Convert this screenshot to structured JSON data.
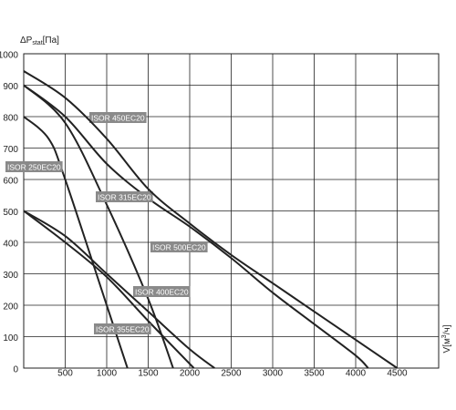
{
  "chart_data": {
    "type": "line",
    "y_label_main": "ΔP",
    "y_label_sub": "stat",
    "y_label_unit": "[Па]",
    "x_label_main": "V[м",
    "x_label_sup": "3",
    "x_label_unit": "/ч]",
    "xlim": [
      0,
      5000
    ],
    "ylim": [
      0,
      1000
    ],
    "xticks": [
      500,
      1000,
      1500,
      2000,
      2500,
      3000,
      3500,
      4000,
      4500
    ],
    "yticks": [
      0,
      100,
      200,
      300,
      400,
      500,
      600,
      700,
      800,
      900,
      1000
    ],
    "grid": true,
    "series": [
      {
        "name": "ISOR 450EC20",
        "color": "#222222",
        "x": [
          0,
          500,
          1000,
          1500,
          2000,
          2500,
          3000,
          3500,
          4000,
          4150
        ],
        "values": [
          900,
          800,
          650,
          540,
          450,
          350,
          240,
          140,
          40,
          0
        ]
      },
      {
        "name": "ISOR 250EC20",
        "color": "#222222",
        "x": [
          0,
          300,
          500,
          1000,
          1250
        ],
        "values": [
          800,
          730,
          600,
          200,
          0
        ]
      },
      {
        "name": "ISOR 315EC20",
        "color": "#222222",
        "x": [
          0,
          500,
          1000,
          1500,
          1800
        ],
        "values": [
          900,
          780,
          520,
          220,
          0
        ]
      },
      {
        "name": "ISOR 500EC20",
        "color": "#222222",
        "x": [
          0,
          500,
          1000,
          1500,
          2000,
          2500,
          3000,
          3500,
          4000,
          4500
        ],
        "values": [
          945,
          860,
          730,
          570,
          460,
          360,
          270,
          180,
          90,
          0
        ]
      },
      {
        "name": "ISOR 400EC20",
        "color": "#222222",
        "x": [
          0,
          500,
          1000,
          1500,
          2000,
          2300
        ],
        "values": [
          500,
          420,
          300,
          180,
          60,
          0
        ]
      },
      {
        "name": "ISOR 355EC20",
        "color": "#222222",
        "x": [
          0,
          500,
          1000,
          1500,
          2050
        ],
        "values": [
          500,
          400,
          290,
          150,
          0
        ]
      }
    ]
  }
}
